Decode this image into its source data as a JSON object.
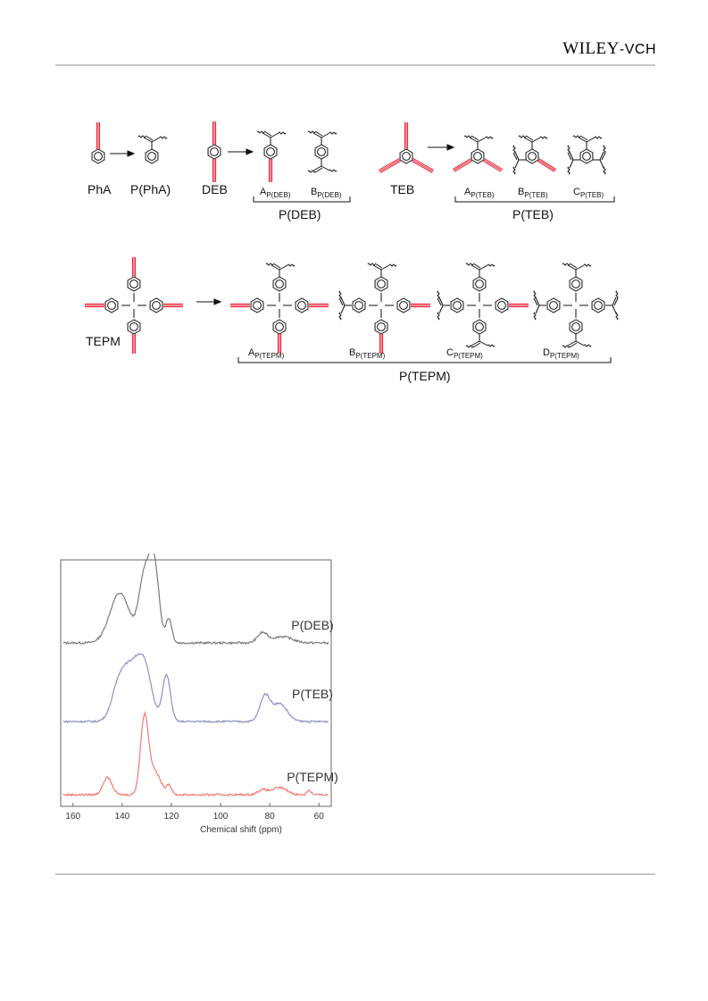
{
  "header": {
    "publisher_main": "WILEY",
    "publisher_suffix": "-VCH"
  },
  "scheme": {
    "labels": {
      "pha": "PhA",
      "ppha": "P(PhA)",
      "deb": "DEB",
      "pdeb": "P(DEB)",
      "teb": "TEB",
      "pteb": "P(TEB)",
      "tepm": "TEPM",
      "ptepm": "P(TEPM)"
    },
    "deb_units": [
      {
        "main": "A",
        "sub": "P(DEB)"
      },
      {
        "main": "B",
        "sub": "P(DEB)"
      }
    ],
    "teb_units": [
      {
        "main": "A",
        "sub": "P(TEB)"
      },
      {
        "main": "B",
        "sub": "P(TEB)"
      },
      {
        "main": "C",
        "sub": "P(TEB)"
      }
    ],
    "tepm_units": [
      {
        "main": "A",
        "sub": "P(TEPM)"
      },
      {
        "main": "B",
        "sub": "P(TEPM)"
      },
      {
        "main": "C",
        "sub": "P(TEPM)"
      },
      {
        "main": "D",
        "sub": "P(TEPM)"
      }
    ],
    "colors": {
      "alkyne": "#e8192c",
      "bond": "#111111"
    }
  },
  "chart_data": {
    "type": "line",
    "xlabel": "Chemical shift (ppm)",
    "ylabel": "",
    "xlim": [
      165,
      55
    ],
    "x_reversed": true,
    "xticks": [
      160,
      140,
      120,
      100,
      80,
      60
    ],
    "grid": false,
    "series": [
      {
        "name": "P(DEB)",
        "color": "#7a7a7a",
        "peaks": [
          [
            141,
            0.62,
            4.0
          ],
          [
            131,
            0.8,
            2.2
          ],
          [
            127,
            0.95,
            2.0
          ],
          [
            121,
            0.3,
            1.2
          ],
          [
            83,
            0.12,
            2.0
          ],
          [
            75,
            0.08,
            4.0
          ]
        ]
      },
      {
        "name": "P(TEB)",
        "color": "#8f8fc4",
        "peaks": [
          [
            141,
            0.55,
            3.0
          ],
          [
            136,
            0.55,
            3.0
          ],
          [
            131,
            0.75,
            3.0
          ],
          [
            122,
            0.65,
            1.6
          ],
          [
            82,
            0.35,
            2.0
          ],
          [
            76,
            0.25,
            3.0
          ]
        ]
      },
      {
        "name": "P(TEPM)",
        "color": "#f07a70",
        "peaks": [
          [
            146,
            0.22,
            1.8
          ],
          [
            131,
            0.95,
            1.6
          ],
          [
            127,
            0.3,
            2.5
          ],
          [
            121,
            0.12,
            1.0
          ],
          [
            83,
            0.06,
            2.0
          ],
          [
            76,
            0.09,
            3.0
          ],
          [
            64,
            0.06,
            0.8
          ]
        ]
      }
    ]
  }
}
